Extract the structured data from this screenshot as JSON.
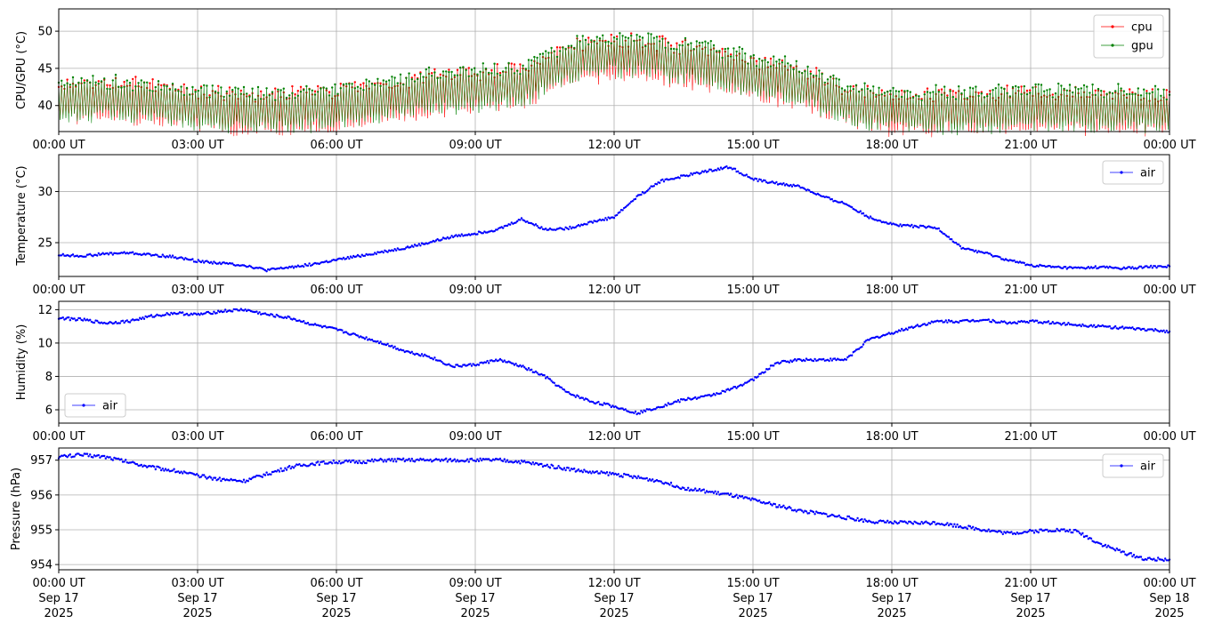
{
  "colors": {
    "cpu": "#ff0000",
    "gpu": "#008000",
    "air": "#0000ff",
    "grid": "#b0b0b0"
  },
  "x_tick_labels": [
    "00:00 UT",
    "03:00 UT",
    "06:00 UT",
    "09:00 UT",
    "12:00 UT",
    "15:00 UT",
    "18:00 UT",
    "21:00 UT",
    "00:00 UT"
  ],
  "x_date_labels": [
    [
      "Sep 17",
      "2025"
    ],
    [
      "Sep 17",
      "2025"
    ],
    [
      "Sep 17",
      "2025"
    ],
    [
      "Sep 17",
      "2025"
    ],
    [
      "Sep 17",
      "2025"
    ],
    [
      "Sep 17",
      "2025"
    ],
    [
      "Sep 17",
      "2025"
    ],
    [
      "Sep 17",
      "2025"
    ],
    [
      "Sep 18",
      "2025"
    ]
  ],
  "chart_data": [
    {
      "type": "line",
      "ylabel": "CPU/GPU (°C)",
      "ylim": [
        36.5,
        53
      ],
      "yticks": [
        40,
        45,
        50
      ],
      "xlim": [
        "2025-09-17 00:00",
        "2025-09-18 00:00"
      ],
      "grid": true,
      "legend": "top-right",
      "x": [
        "00:00",
        "01:00",
        "02:00",
        "03:00",
        "04:00",
        "05:00",
        "06:00",
        "07:00",
        "08:00",
        "09:00",
        "10:00",
        "11:00",
        "12:00",
        "13:00",
        "14:00",
        "15:00",
        "16:00",
        "17:00",
        "18:00",
        "19:00",
        "20:00",
        "21:00",
        "22:00",
        "23:00",
        "24:00"
      ],
      "series": [
        {
          "name": "cpu",
          "values": [
            40.5,
            40.8,
            40.2,
            39.5,
            39.0,
            39.2,
            39.6,
            40.5,
            41.5,
            42.0,
            42.5,
            45.5,
            46.5,
            46.0,
            45.0,
            43.5,
            42.5,
            40.0,
            39.2,
            39.0,
            39.2,
            39.5,
            39.3,
            39.2,
            39.0
          ]
        },
        {
          "name": "gpu",
          "values": [
            40.8,
            41.0,
            40.5,
            39.8,
            39.3,
            39.5,
            39.9,
            40.8,
            41.8,
            42.3,
            42.8,
            46.0,
            47.0,
            46.5,
            45.5,
            44.0,
            43.0,
            40.3,
            39.5,
            39.3,
            39.5,
            39.8,
            39.6,
            39.5,
            39.3
          ]
        }
      ]
    },
    {
      "type": "line",
      "ylabel": "Temperature (°C)",
      "ylim": [
        21.7,
        33.6
      ],
      "yticks": [
        25,
        30
      ],
      "xlim": [
        "2025-09-17 00:00",
        "2025-09-18 00:00"
      ],
      "grid": true,
      "legend": "top-right",
      "x": [
        "00:00",
        "00:30",
        "01:00",
        "01:30",
        "02:00",
        "02:30",
        "03:00",
        "03:30",
        "04:00",
        "04:30",
        "05:00",
        "05:30",
        "06:00",
        "06:30",
        "07:00",
        "07:30",
        "08:00",
        "08:30",
        "09:00",
        "09:30",
        "10:00",
        "10:30",
        "11:00",
        "11:30",
        "12:00",
        "12:30",
        "13:00",
        "13:30",
        "14:00",
        "14:30",
        "15:00",
        "15:30",
        "16:00",
        "16:30",
        "17:00",
        "17:30",
        "18:00",
        "18:30",
        "19:00",
        "19:30",
        "20:00",
        "20:30",
        "21:00",
        "21:30",
        "22:00",
        "22:30",
        "23:00",
        "23:30",
        "24:00"
      ],
      "series": [
        {
          "name": "air",
          "values": [
            23.8,
            23.7,
            23.9,
            24.0,
            23.8,
            23.6,
            23.2,
            23.0,
            22.8,
            22.3,
            22.6,
            22.9,
            23.3,
            23.7,
            24.1,
            24.5,
            25.0,
            25.6,
            25.9,
            26.3,
            27.3,
            26.3,
            26.4,
            27.0,
            27.5,
            29.5,
            31.0,
            31.5,
            32.0,
            32.4,
            31.2,
            30.8,
            30.5,
            29.5,
            28.8,
            27.5,
            26.8,
            26.6,
            26.4,
            24.5,
            24.0,
            23.3,
            22.8,
            22.6,
            22.5,
            22.6,
            22.5,
            22.6,
            22.7
          ]
        }
      ]
    },
    {
      "type": "line",
      "ylabel": "Humidity (%)",
      "ylim": [
        5.2,
        12.5
      ],
      "yticks": [
        6,
        8,
        10,
        12
      ],
      "xlim": [
        "2025-09-17 00:00",
        "2025-09-18 00:00"
      ],
      "grid": true,
      "legend": "bottom-left",
      "x": [
        "00:00",
        "00:30",
        "01:00",
        "01:30",
        "02:00",
        "02:30",
        "03:00",
        "03:30",
        "04:00",
        "04:30",
        "05:00",
        "05:30",
        "06:00",
        "06:30",
        "07:00",
        "07:30",
        "08:00",
        "08:30",
        "09:00",
        "09:30",
        "10:00",
        "10:30",
        "11:00",
        "11:30",
        "12:00",
        "12:30",
        "13:00",
        "13:30",
        "14:00",
        "14:30",
        "15:00",
        "15:30",
        "16:00",
        "16:30",
        "17:00",
        "17:30",
        "18:00",
        "18:30",
        "19:00",
        "19:30",
        "20:00",
        "20:30",
        "21:00",
        "21:30",
        "22:00",
        "22:30",
        "23:00",
        "23:30",
        "24:00"
      ],
      "series": [
        {
          "name": "air",
          "values": [
            11.5,
            11.4,
            11.2,
            11.3,
            11.6,
            11.8,
            11.7,
            11.9,
            12.0,
            11.7,
            11.5,
            11.1,
            10.8,
            10.4,
            10.0,
            9.5,
            9.2,
            8.6,
            8.7,
            9.0,
            8.6,
            8.0,
            7.0,
            6.5,
            6.2,
            5.8,
            6.2,
            6.6,
            6.8,
            7.2,
            7.8,
            8.8,
            9.0,
            9.0,
            9.0,
            10.2,
            10.6,
            11.0,
            11.3,
            11.3,
            11.4,
            11.2,
            11.3,
            11.2,
            11.1,
            11.0,
            10.9,
            10.8,
            10.7
          ]
        }
      ]
    },
    {
      "type": "line",
      "ylabel": "Pressure (hPa)",
      "ylim": [
        953.85,
        957.35
      ],
      "yticks": [
        954,
        955,
        956,
        957
      ],
      "xlim": [
        "2025-09-17 00:00",
        "2025-09-18 00:00"
      ],
      "grid": true,
      "legend": "top-right",
      "x": [
        "00:00",
        "00:30",
        "01:00",
        "01:30",
        "02:00",
        "02:30",
        "03:00",
        "03:30",
        "04:00",
        "04:30",
        "05:00",
        "05:30",
        "06:00",
        "06:30",
        "07:00",
        "07:30",
        "08:00",
        "08:30",
        "09:00",
        "09:30",
        "10:00",
        "10:30",
        "11:00",
        "11:30",
        "12:00",
        "12:30",
        "13:00",
        "13:30",
        "14:00",
        "14:30",
        "15:00",
        "15:30",
        "16:00",
        "16:30",
        "17:00",
        "17:30",
        "18:00",
        "18:30",
        "19:00",
        "19:30",
        "20:00",
        "20:30",
        "21:00",
        "21:30",
        "22:00",
        "22:30",
        "23:00",
        "23:30",
        "24:00"
      ],
      "series": [
        {
          "name": "air",
          "values": [
            957.1,
            957.15,
            957.1,
            956.95,
            956.8,
            956.7,
            956.55,
            956.45,
            956.4,
            956.6,
            956.8,
            956.9,
            956.95,
            956.95,
            957.0,
            957.0,
            957.0,
            957.0,
            957.0,
            957.0,
            956.95,
            956.85,
            956.75,
            956.65,
            956.6,
            956.5,
            956.4,
            956.2,
            956.1,
            956.0,
            955.85,
            955.7,
            955.55,
            955.45,
            955.35,
            955.25,
            955.2,
            955.2,
            955.2,
            955.1,
            955.0,
            954.9,
            954.95,
            955.0,
            954.95,
            954.6,
            954.35,
            954.15,
            954.15
          ]
        }
      ]
    }
  ]
}
